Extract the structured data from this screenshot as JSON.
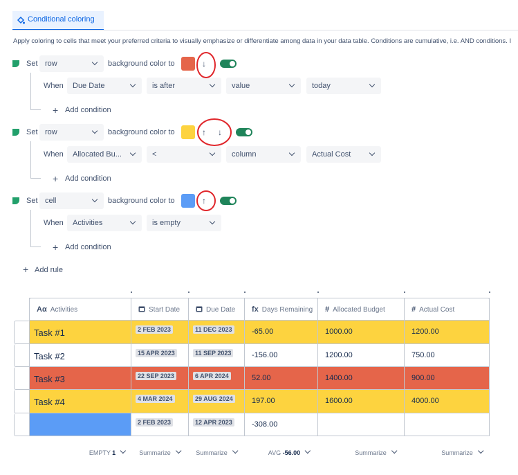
{
  "tab": "Conditional coloring",
  "description": "Apply coloring to cells that meet your preferred criteria to visually emphasize or differentiate among data in your data table. Conditions are cumulative, i.e. AND conditions. I",
  "rules": [
    {
      "set_label": "Set",
      "target": "row",
      "color_label": "background color to",
      "color": "#e5654a",
      "when_label": "When",
      "conditions": [
        "Due Date",
        "is after",
        "value",
        "today"
      ],
      "add_condition": "Add condition"
    },
    {
      "set_label": "Set",
      "target": "row",
      "color_label": "background color to",
      "color": "#fdd33f",
      "when_label": "When",
      "conditions": [
        "Allocated Bu...",
        "<",
        "column",
        "Actual Cost"
      ],
      "add_condition": "Add condition"
    },
    {
      "set_label": "Set",
      "target": "cell",
      "color_label": "background color to",
      "color": "#5b9cf6",
      "when_label": "When",
      "conditions": [
        "Activities",
        "is empty"
      ],
      "add_condition": "Add condition"
    }
  ],
  "add_rule": "Add rule",
  "table": {
    "headers": [
      {
        "icon": "Aα",
        "label": "Activities"
      },
      {
        "label": "Start Date"
      },
      {
        "label": "Due Date"
      },
      {
        "icon": "fx",
        "label": "Days Remaining"
      },
      {
        "icon": "#",
        "label": "Allocated Budget"
      },
      {
        "icon": "#",
        "label": "Actual Cost"
      }
    ],
    "rows": [
      [
        "Task #1",
        "2 FEB 2023",
        "11 DEC 2023",
        "-65.00",
        "1000.00",
        "1200.00"
      ],
      [
        "Task #2",
        "15 APR 2023",
        "11 SEP 2023",
        "-156.00",
        "1200.00",
        "750.00"
      ],
      [
        "Task #3",
        "22 SEP 2023",
        "6 APR 2024",
        "52.00",
        "1400.00",
        "900.00"
      ],
      [
        "Task #4",
        "4 MAR 2024",
        "29 AUG 2024",
        "197.00",
        "1600.00",
        "4000.00"
      ],
      [
        null,
        "2 FEB 2023",
        "12 APR 2023",
        "-308.00",
        null,
        null
      ]
    ],
    "footer": [
      {
        "label": "EMPTY",
        "value": "1"
      },
      {
        "label": "Summarize"
      },
      {
        "label": "Summarize"
      },
      {
        "label": "AVG",
        "value": "-56.00"
      },
      {
        "label": "Summarize"
      },
      {
        "label": "Summarize"
      }
    ]
  }
}
